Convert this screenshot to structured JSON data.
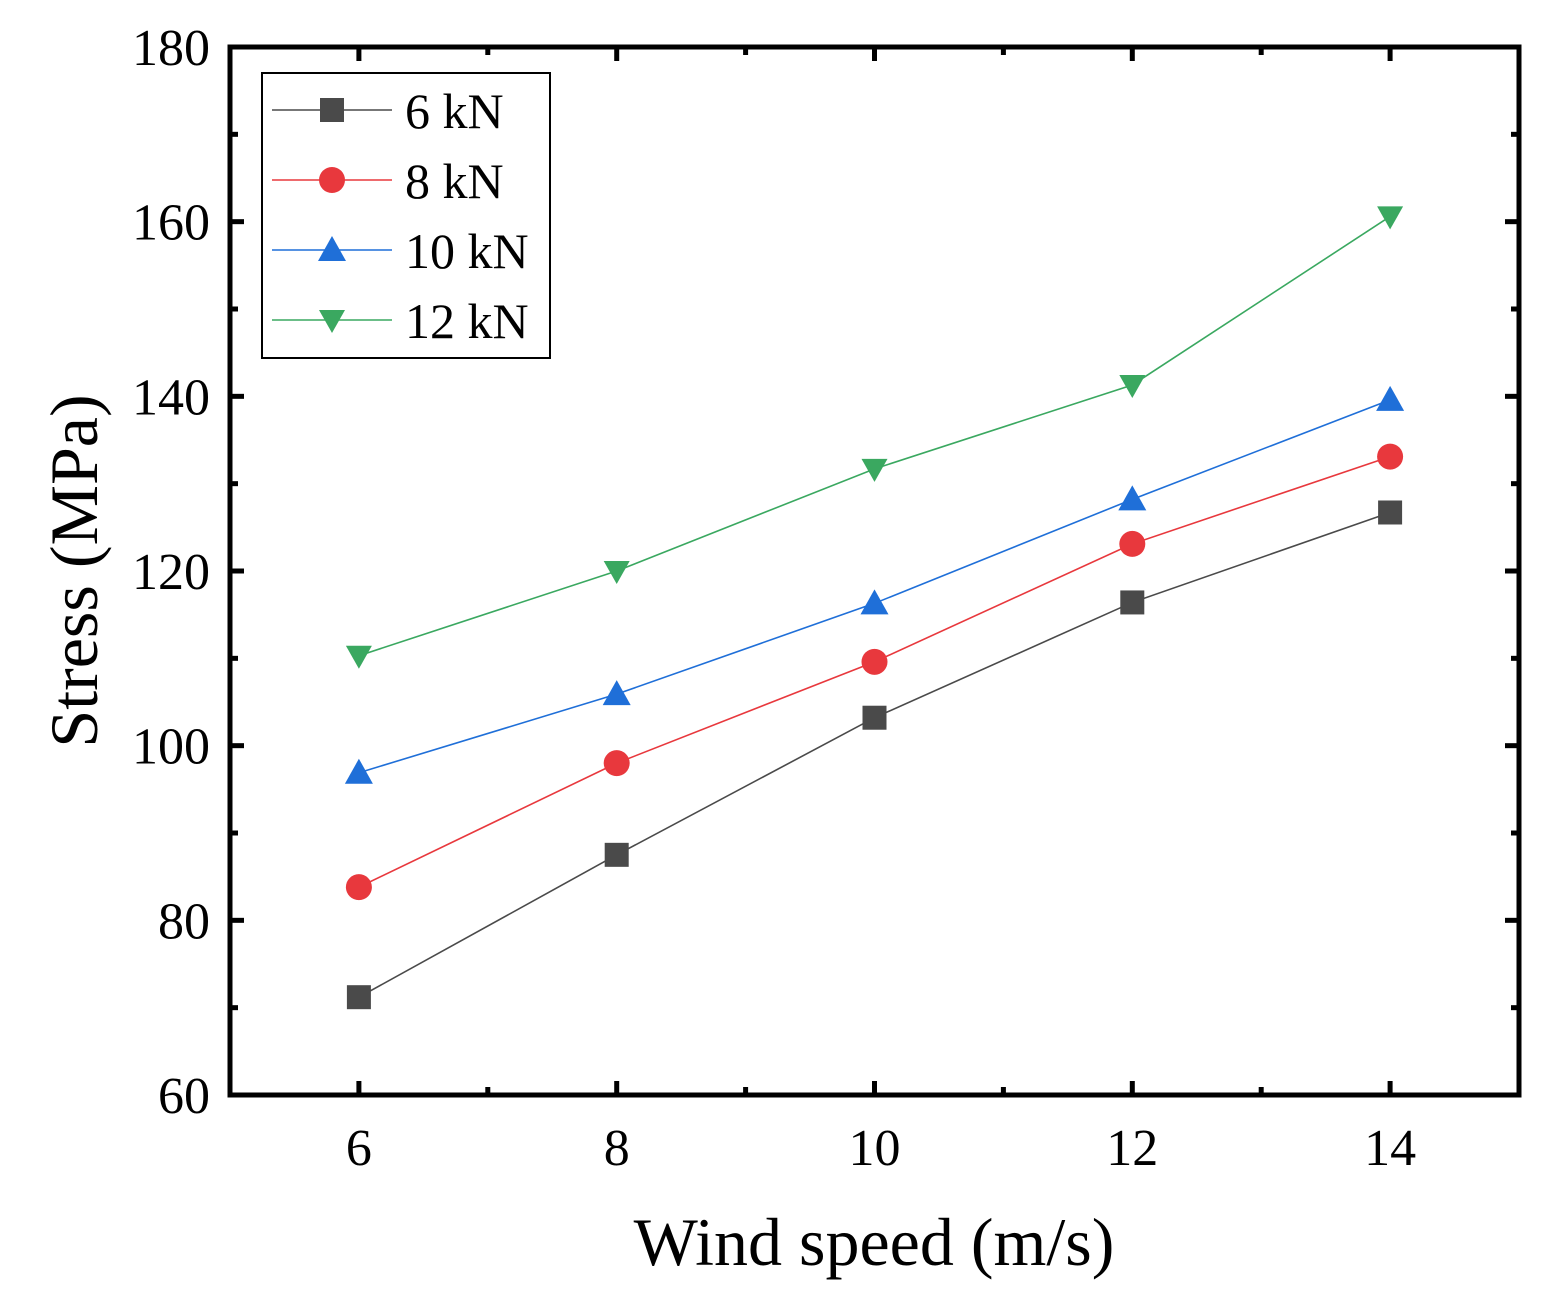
{
  "chart_data": {
    "type": "line",
    "title": "",
    "xlabel": "Wind speed (m/s)",
    "ylabel": "Stress (MPa)",
    "xlim": [
      5,
      15
    ],
    "ylim": [
      60,
      180
    ],
    "x_ticks": [
      6,
      8,
      10,
      12,
      14
    ],
    "y_ticks": [
      60,
      80,
      100,
      120,
      140,
      160,
      180
    ],
    "x": [
      6,
      8,
      10,
      12,
      14
    ],
    "legend_position": "top-left",
    "series": [
      {
        "name": "6 kN",
        "color": "#4a4a4a",
        "marker": "square",
        "values": [
          71.2,
          87.5,
          103.2,
          116.4,
          126.7
        ]
      },
      {
        "name": "8 kN",
        "color": "#e8383d",
        "marker": "circle",
        "values": [
          83.8,
          98.0,
          109.6,
          123.1,
          133.1
        ]
      },
      {
        "name": "10 kN",
        "color": "#1f6fd8",
        "marker": "triangle-up",
        "values": [
          96.9,
          105.9,
          116.3,
          128.2,
          139.6
        ]
      },
      {
        "name": "12 kN",
        "color": "#3aa860",
        "marker": "triangle-down",
        "values": [
          110.3,
          120.0,
          131.7,
          141.3,
          160.6
        ]
      }
    ]
  }
}
